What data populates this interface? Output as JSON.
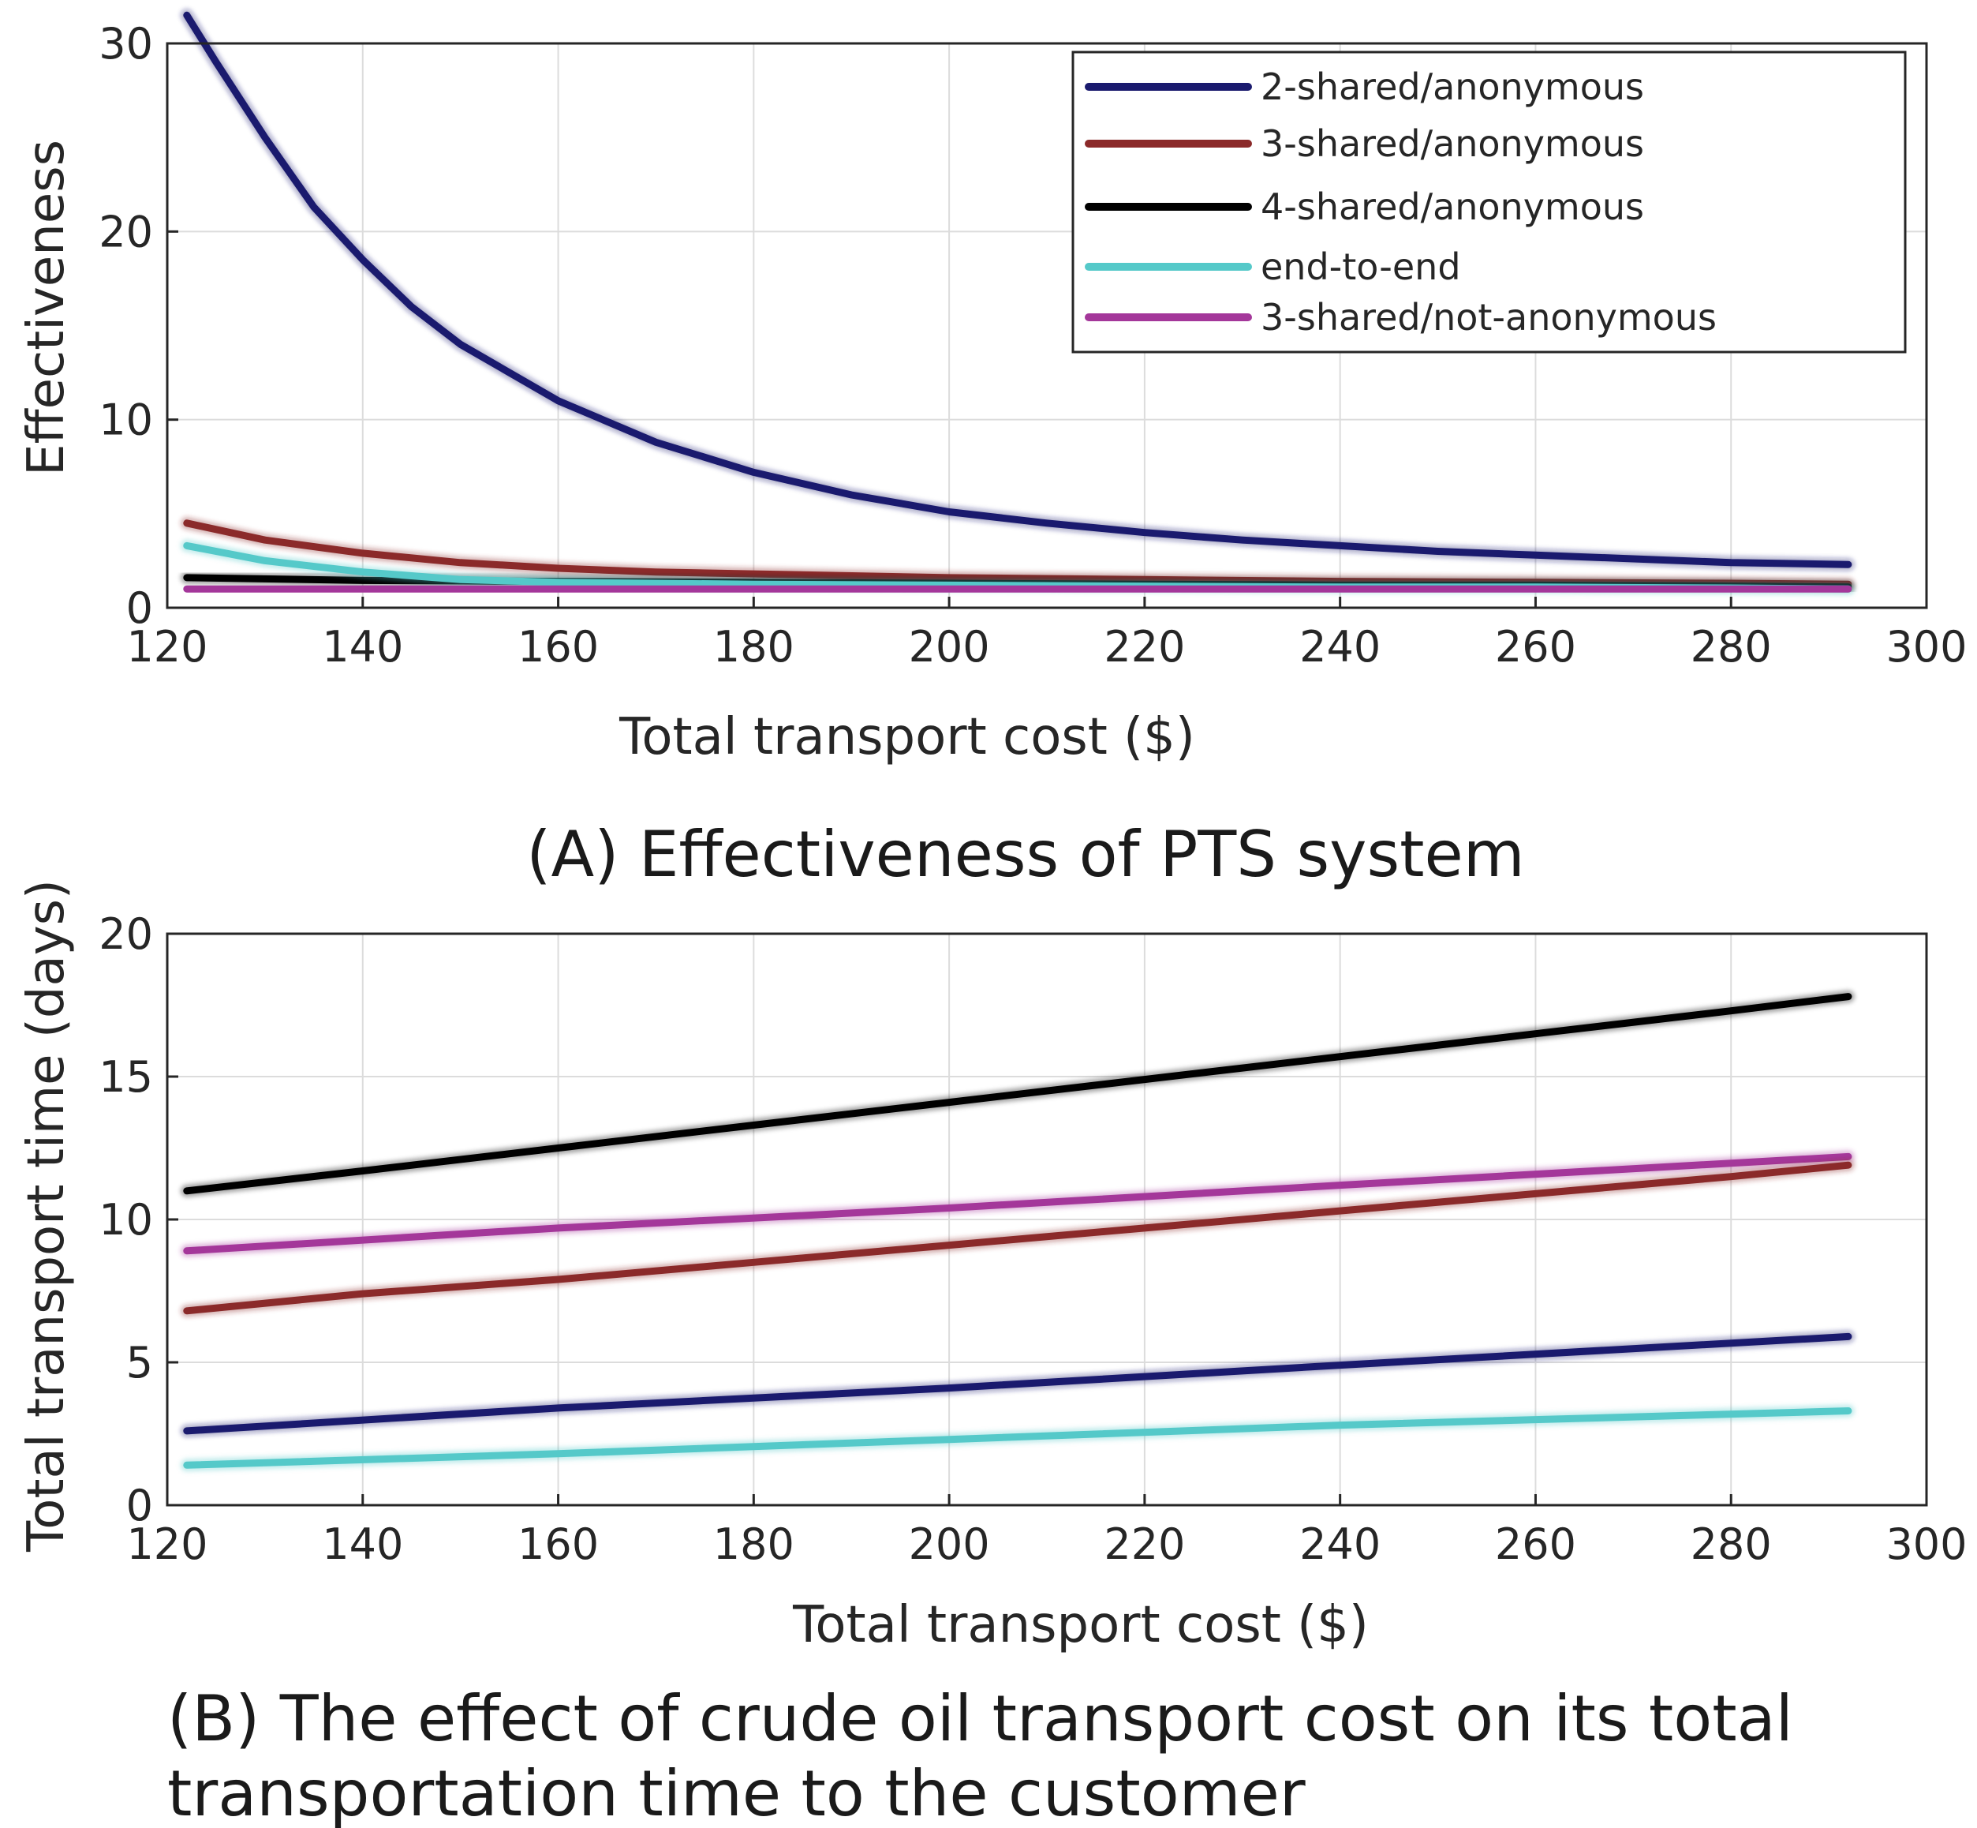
{
  "chart_data": [
    {
      "type": "line",
      "caption": "(A) Effectiveness of PTS system",
      "xlabel": "Total transport cost ($)",
      "ylabel": "Effectiveness",
      "xlim": [
        120,
        300
      ],
      "ylim": [
        0,
        30
      ],
      "xticks": [
        120,
        140,
        160,
        180,
        200,
        220,
        240,
        260,
        280,
        300
      ],
      "yticks": [
        0,
        10,
        20,
        30
      ],
      "grid": true,
      "legend_position": "top-right",
      "series": [
        {
          "name": "2-shared/anonymous",
          "color": "#1a1a6e",
          "x": [
            122,
            125,
            130,
            135,
            140,
            145,
            150,
            160,
            170,
            180,
            190,
            200,
            210,
            220,
            230,
            240,
            250,
            260,
            270,
            280,
            292
          ],
          "y": [
            31.5,
            29.0,
            25.0,
            21.3,
            18.5,
            16.0,
            14.0,
            11.0,
            8.8,
            7.2,
            6.0,
            5.1,
            4.5,
            4.0,
            3.6,
            3.3,
            3.0,
            2.8,
            2.6,
            2.4,
            2.3
          ]
        },
        {
          "name": "3-shared/anonymous",
          "color": "#8b2a2a",
          "x": [
            122,
            130,
            140,
            150,
            160,
            170,
            180,
            200,
            220,
            240,
            260,
            280,
            292
          ],
          "y": [
            4.5,
            3.6,
            2.9,
            2.4,
            2.1,
            1.9,
            1.8,
            1.6,
            1.5,
            1.4,
            1.35,
            1.3,
            1.25
          ]
        },
        {
          "name": "4-shared/anonymous",
          "color": "#000000",
          "x": [
            122,
            140,
            160,
            180,
            200,
            220,
            240,
            260,
            280,
            292
          ],
          "y": [
            1.6,
            1.45,
            1.4,
            1.35,
            1.3,
            1.25,
            1.2,
            1.2,
            1.15,
            1.1
          ]
        },
        {
          "name": "end-to-end",
          "color": "#55c9c9",
          "x": [
            122,
            130,
            140,
            150,
            160,
            180,
            200,
            220,
            240,
            260,
            280,
            292
          ],
          "y": [
            3.3,
            2.5,
            1.9,
            1.5,
            1.35,
            1.25,
            1.2,
            1.15,
            1.1,
            1.1,
            1.05,
            1.0
          ]
        },
        {
          "name": "3-shared/not-anonymous",
          "color": "#a4379a",
          "x": [
            122,
            150,
            180,
            210,
            240,
            270,
            292
          ],
          "y": [
            1.0,
            1.0,
            1.0,
            1.0,
            1.0,
            1.0,
            1.0
          ]
        }
      ]
    },
    {
      "type": "line",
      "caption": "(B) The effect of crude oil transport cost on its total transportation time to the customer",
      "xlabel": "Total transport cost ($)",
      "ylabel": "Total transport time (days)",
      "xlim": [
        120,
        300
      ],
      "ylim": [
        0,
        20
      ],
      "xticks": [
        120,
        140,
        160,
        180,
        200,
        220,
        240,
        260,
        280,
        300
      ],
      "yticks": [
        0,
        5,
        10,
        15,
        20
      ],
      "grid": true,
      "series": [
        {
          "name": "4-shared/anonymous",
          "color": "#000000",
          "x": [
            122,
            140,
            160,
            180,
            200,
            220,
            240,
            260,
            280,
            292
          ],
          "y": [
            11.0,
            11.7,
            12.5,
            13.3,
            14.1,
            14.9,
            15.7,
            16.5,
            17.3,
            17.8
          ]
        },
        {
          "name": "3-shared/not-anonymous",
          "color": "#a4379a",
          "x": [
            122,
            160,
            200,
            240,
            292
          ],
          "y": [
            8.9,
            9.7,
            10.4,
            11.2,
            12.2
          ]
        },
        {
          "name": "3-shared/anonymous",
          "color": "#8b2a2a",
          "x": [
            122,
            140,
            160,
            180,
            200,
            220,
            240,
            260,
            280,
            292
          ],
          "y": [
            6.8,
            7.4,
            7.9,
            8.5,
            9.1,
            9.7,
            10.3,
            10.9,
            11.5,
            11.9
          ]
        },
        {
          "name": "2-shared/anonymous",
          "color": "#1a1a6e",
          "x": [
            122,
            160,
            200,
            240,
            292
          ],
          "y": [
            2.6,
            3.4,
            4.1,
            4.9,
            5.9
          ]
        },
        {
          "name": "end-to-end",
          "color": "#55c9c9",
          "x": [
            122,
            160,
            200,
            240,
            292
          ],
          "y": [
            1.4,
            1.8,
            2.3,
            2.8,
            3.3
          ]
        }
      ]
    }
  ]
}
